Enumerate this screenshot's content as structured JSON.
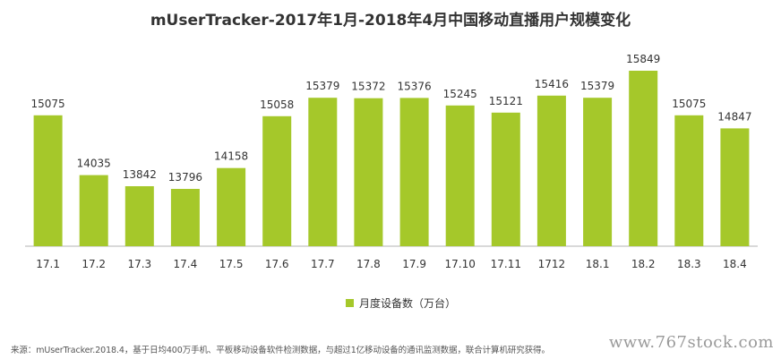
{
  "title": "mUserTracker-2017年1月-2018年4月中国移动直播用户规模变化",
  "legend_label": "月度设备数（万台）",
  "source_note": "来源：mUserTracker.2018.4，基于日均400万手机、平板移动设备软件检测数据，与超过1亿移动设备的通讯监测数据，联合计算机研究获得。",
  "watermark": "www.767stock.com",
  "colors": {
    "bar": "#a5c82a",
    "axis": "#b3b3b3"
  },
  "chart_data": {
    "type": "bar",
    "title": "mUserTracker-2017年1月-2018年4月中国移动直播用户规模变化",
    "categories": [
      "17.1",
      "17.2",
      "17.3",
      "17.4",
      "17.5",
      "17.6",
      "17.7",
      "17.8",
      "17.9",
      "17.10",
      "17.11",
      "1712",
      "18.1",
      "18.2",
      "18.3",
      "18.4"
    ],
    "series": [
      {
        "name": "月度设备数（万台）",
        "values": [
          15075,
          14035,
          13842,
          13796,
          14158,
          15058,
          15379,
          15372,
          15376,
          15245,
          15121,
          15416,
          15379,
          15849,
          15075,
          14847
        ]
      }
    ],
    "xlabel": "",
    "ylabel": "",
    "legend_position": "bottom"
  }
}
